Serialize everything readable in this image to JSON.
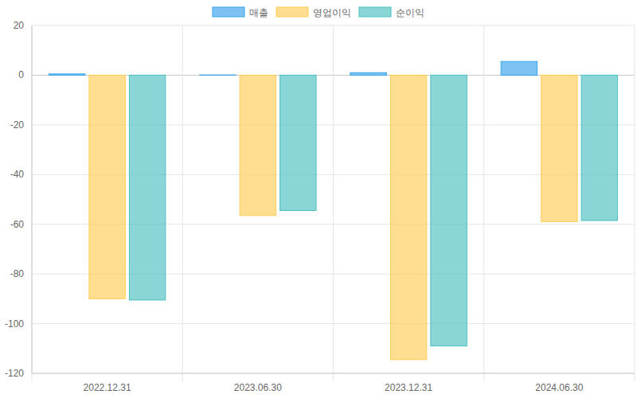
{
  "chart_data": {
    "type": "bar",
    "categories": [
      "2022.12.31",
      "2023.06.30",
      "2023.12.31",
      "2024.06.30"
    ],
    "series": [
      {
        "name": "매출",
        "color": "#36a2eb",
        "values": [
          0.5,
          0.1,
          1.0,
          5.5
        ]
      },
      {
        "name": "영업이익",
        "color": "#ffcd56",
        "values": [
          -90.0,
          -56.5,
          -114.5,
          -59.0
        ]
      },
      {
        "name": "순이익",
        "color": "#4bc0c0",
        "values": [
          -90.5,
          -54.5,
          -109.0,
          -58.5
        ]
      }
    ],
    "ylim": [
      -120,
      20
    ],
    "yticks": [
      -120,
      -100,
      -80,
      -60,
      -40,
      -20,
      0,
      20
    ],
    "grid": true,
    "legend": "top"
  }
}
